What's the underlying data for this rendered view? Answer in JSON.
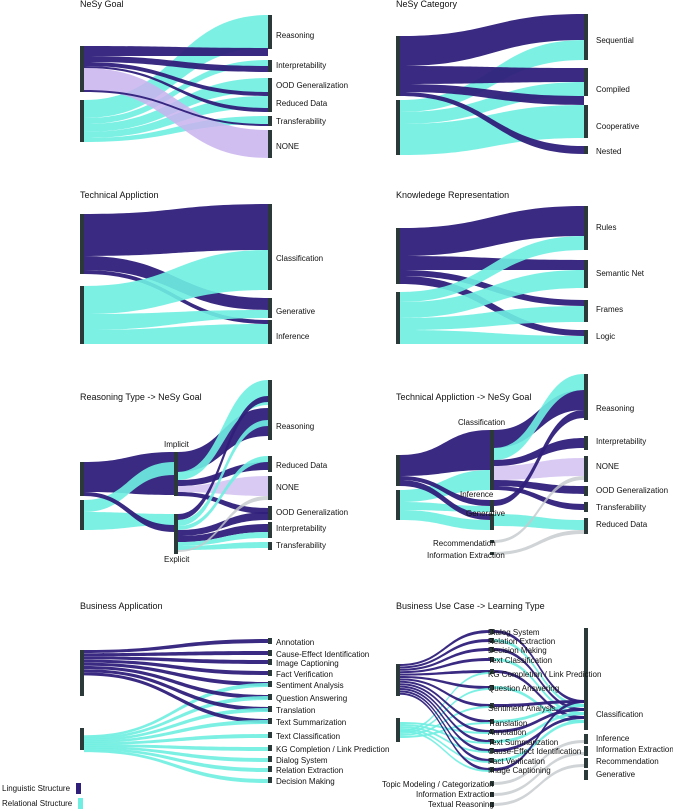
{
  "colors": {
    "linguistic": "#2f1f7a",
    "relational": "#6feee1",
    "none": "#c9b3ee",
    "grey": "#c4c9cc",
    "node": "#2b3a38"
  },
  "legend": {
    "linguistic": "Linguistic Structure",
    "relational": "Relational Structure"
  },
  "panels": {
    "nesy_goal": {
      "title": "NeSy Goal",
      "labels": [
        "Reasoning",
        "Interpretability",
        "OOD Generalization",
        "Reduced Data",
        "Transferability",
        "NONE"
      ]
    },
    "nesy_category": {
      "title": "NeSy Category",
      "labels": [
        "Sequential",
        "Compiled",
        "Cooperative",
        "Nested"
      ]
    },
    "technical_application": {
      "title": "Technical Appliction",
      "labels": [
        "Classification",
        "Generative",
        "Inference"
      ]
    },
    "knowledge_representation": {
      "title": "Knowledege Representation",
      "labels": [
        "Rules",
        "Semantic Net",
        "Frames",
        "Logic"
      ]
    },
    "reasoning_type_goal": {
      "title": "Reasoning Type -> NeSy Goal",
      "mid": [
        "Implicit",
        "Explicit"
      ],
      "labels": [
        "Reasoning",
        "Reduced Data",
        "NONE",
        "OOD Generalization",
        "Interpretability",
        "Transferability"
      ]
    },
    "technical_goal": {
      "title": "Technical Appliction -> NeSy Goal",
      "mid": [
        "Classification",
        "Inference",
        "Generative",
        "Recommendation",
        "Information Extraction"
      ],
      "labels": [
        "Reasoning",
        "Interpretability",
        "NONE",
        "OOD Generalization",
        "Transferability",
        "Reduced Data"
      ]
    },
    "business_application": {
      "title": "Business Application",
      "labels": [
        "Annotation",
        "Cause-Effect Identification",
        "Image Captioning",
        "Fact Verification",
        "Sentiment Analysis",
        "Question Answering",
        "Translation",
        "Text Summarization",
        "Text Classification",
        "KG Completion / Link Prediction",
        "Dialog System",
        "Relation Extraction",
        "Decision Making"
      ]
    },
    "business_learning": {
      "title": "Business Use Case -> Learning Type",
      "mid": [
        "Dialog System",
        "Relation Extraction",
        "Decision Making",
        "Text Classification",
        "KG Completion / Link Prediction",
        "Question Answering",
        "Sentiment Analysis",
        "Translation",
        "Annotation",
        "Text Summarization",
        "Cause-Effect Identification",
        "Fact Verification",
        "Image Captioning",
        "Topic Modeling / Categorization",
        "Information Extraction",
        "Textual Reasoning"
      ],
      "labels": [
        "Classification",
        "Inference",
        "Information Extraction",
        "Recommendation",
        "Generative"
      ]
    }
  }
}
